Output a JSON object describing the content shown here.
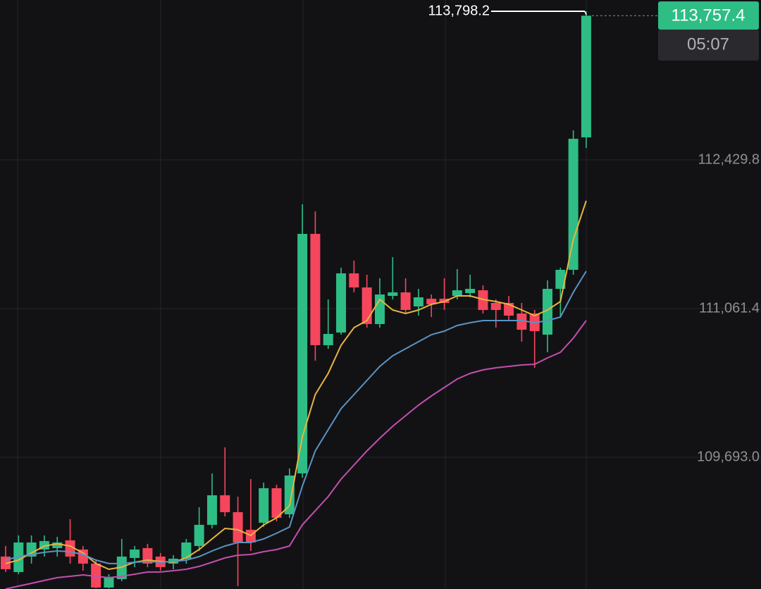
{
  "chart_data": {
    "type": "candlestick",
    "categories": [
      null,
      null,
      null,
      null,
      null,
      null,
      null,
      null,
      null,
      null,
      null,
      null,
      null,
      null,
      null,
      null,
      null,
      null,
      null,
      null,
      null,
      null,
      null,
      null,
      null,
      null,
      null,
      null,
      null,
      null,
      null,
      null,
      null,
      null,
      null,
      null,
      null,
      null,
      null,
      null,
      null,
      null,
      null,
      null,
      null,
      null
    ],
    "open": [
      108778.8,
      108636.2,
      108778.8,
      108843.7,
      108856.7,
      108928,
      108843.7,
      108714,
      108493.5,
      108571.3,
      108765.9,
      108856.7,
      108778.8,
      108714,
      108759.4,
      108876.1,
      109070.7,
      109343,
      109187.4,
      109025.3,
      109090.1,
      109407.9,
      109168,
      109544.1,
      111749,
      110724.3,
      110841.1,
      111385.8,
      111256.1,
      110918.9,
      111178.3,
      111210.7,
      111081,
      111152.4,
      111152.4,
      111178.3,
      111204.2,
      111230.2,
      111113.4,
      111113.4,
      111016.2,
      111016.2,
      110821.6,
      111243.1,
      111418.2,
      112637.4
    ],
    "high": [
      108876.1,
      108973.4,
      108973.4,
      108973.4,
      108960.4,
      109122.6,
      108876.1,
      108746.4,
      108616.7,
      108941,
      108876.1,
      108895.6,
      108811.3,
      108791.8,
      108941,
      109232.8,
      109544.1,
      109784,
      109330.1,
      109492.2,
      109459.8,
      109440.3,
      109589.5,
      112021.3,
      111956.5,
      111145.9,
      111437.7,
      111502.5,
      111372.8,
      111340.4,
      111535,
      111340.4,
      111243.1,
      111191.3,
      111340.4,
      111424.7,
      111372.8,
      111275.6,
      111145.9,
      111178.3,
      111113.4,
      111048.6,
      111321,
      111437.7,
      112702.3,
      113798.2
    ],
    "low": [
      108636.2,
      108616.7,
      108714,
      108778.8,
      108778.8,
      108714,
      108649.1,
      108487,
      108487,
      108551.9,
      108681.6,
      108681.6,
      108649.1,
      108662.1,
      108714,
      108830.7,
      109038.2,
      109148.5,
      108506.5,
      108830.7,
      109051.2,
      109103.1,
      109135.5,
      109505.2,
      110581.7,
      110691.9,
      110821.6,
      111210.7,
      110886.5,
      110886.5,
      111145.9,
      111016.2,
      110996.7,
      110983.7,
      111048.6,
      111145.9,
      111165.3,
      111016.2,
      110886.5,
      110951.3,
      110756.8,
      110516.8,
      110659.5,
      110983.7,
      111372.8,
      112540.1
    ],
    "close": [
      108662.1,
      108908.5,
      108908.5,
      108921.5,
      108908.5,
      108778.8,
      108714,
      108493.5,
      108584.3,
      108778.8,
      108843.7,
      108714,
      108681.6,
      108759.4,
      108908.5,
      109070.7,
      109343,
      109187.4,
      108908.5,
      108908.5,
      109407.9,
      109135.5,
      109524.6,
      111749,
      110724.3,
      110828.1,
      111385.8,
      111256.1,
      110918.9,
      111191.3,
      111210.7,
      111048.6,
      111165.3,
      111100.5,
      111113.4,
      111230.2,
      111243.1,
      111048.6,
      111048.6,
      110996.7,
      110867,
      110854,
      111243.1,
      111418.2,
      112624.5,
      113757.4
    ],
    "up_color": "#2ebd85",
    "down_color": "#f6465d",
    "ylim": [
      108480.2,
      113901.9
    ],
    "yticks": [
      {
        "value": 112429.8,
        "label": "112,429.8"
      },
      {
        "value": 111061.4,
        "label": "111,061.4"
      },
      {
        "value": 109693.0,
        "label": "109,693.0"
      }
    ],
    "grid": true,
    "lines": [
      {
        "color": "#e9b53c",
        "values": [
          108714,
          108746.4,
          108811.3,
          108876.1,
          108895.6,
          108876.1,
          108811.3,
          108714,
          108662.1,
          108681.6,
          108726.9,
          108746.4,
          108733.5,
          108726.9,
          108765.9,
          108843.7,
          108941,
          109038.2,
          109025.3,
          108973.4,
          109070.7,
          109135.5,
          109245.8,
          109881.3,
          110270.4,
          110464.9,
          110724.3,
          110886.5,
          110951.3,
          111145.9,
          111048.6,
          111016.2,
          111048.6,
          111100.5,
          111126.4,
          111178.3,
          111178.3,
          111145.9,
          111126.4,
          111100.5,
          111048.6,
          110996.7,
          111048.6,
          111126.4,
          111697.1,
          112053.8
        ]
      },
      {
        "color": "#5b93c2",
        "values": [
          108746.4,
          108778.8,
          108798.3,
          108817.8,
          108830.7,
          108824.2,
          108798.3,
          108746.4,
          108714,
          108714,
          108726.9,
          108733.5,
          108726.9,
          108733.5,
          108746.4,
          108778.8,
          108830.7,
          108876.1,
          108908.5,
          108908.5,
          108941,
          108992.9,
          109051.2,
          109427.3,
          109751.6,
          109946.1,
          110140.7,
          110270.4,
          110400.1,
          110529.8,
          110627.1,
          110691.9,
          110756.8,
          110821.6,
          110854,
          110905.9,
          110931.9,
          110951.3,
          110951.3,
          110951.3,
          110951.3,
          110931.9,
          110951.3,
          110983.7,
          111210.7,
          111405.3
        ]
      },
      {
        "color": "#c44fae",
        "values": [
          108480.5,
          108506.5,
          108532.4,
          108558.4,
          108584.3,
          108597.2,
          108610.2,
          108597.2,
          108584.3,
          108597.2,
          108616.7,
          108636.2,
          108636.2,
          108649.1,
          108662.1,
          108688.1,
          108726.9,
          108765.9,
          108791.8,
          108798.3,
          108824.2,
          108843.7,
          108876.1,
          109070.7,
          109200.4,
          109330.1,
          109492.2,
          109621.9,
          109751.6,
          109868.3,
          109978.6,
          110075.8,
          110173.1,
          110257.4,
          110335.2,
          110413.1,
          110464.9,
          110497.4,
          110516.8,
          110529.8,
          110542.8,
          110549.3,
          110607.6,
          110659.5,
          110789.2,
          110951.3
        ]
      }
    ],
    "high_label": {
      "value": 113798.2,
      "label": "113,798.2"
    },
    "last_price": {
      "value": 113757.4,
      "label": "113,757.4"
    },
    "countdown": "05:07"
  }
}
